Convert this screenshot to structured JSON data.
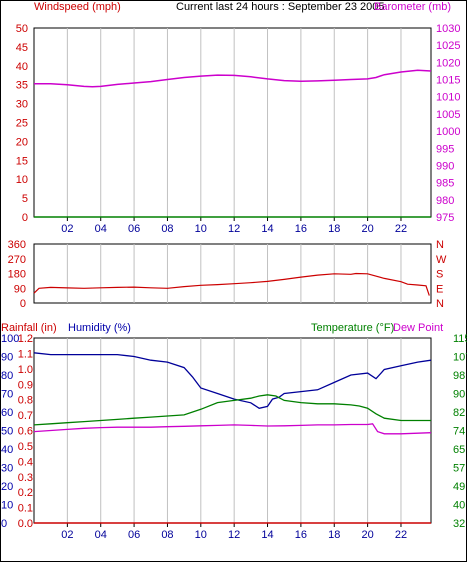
{
  "header": {
    "left_title": "Windspeed (mph)",
    "center_title": "Current last 24 hours : September 23 2005",
    "right_title": "Barometer (mb)"
  },
  "colors": {
    "wind": "#008000",
    "barometer": "#cc00cc",
    "direction": "#cc0000",
    "rain": "#cc0000",
    "humidity": "#000099",
    "temperature": "#008000",
    "dewpoint": "#cc00cc",
    "grid": "#c0c0c0",
    "axis_red": "#cc0000",
    "axis_magenta": "#cc00cc",
    "axis_blue": "#0000aa",
    "axis_green": "#008000"
  },
  "chart_data": [
    {
      "type": "line",
      "panel": "wind-barometer",
      "title": "Current last 24 hours : September 23 2005",
      "x_ticks": [
        "02",
        "04",
        "06",
        "08",
        "10",
        "12",
        "14",
        "16",
        "18",
        "20",
        "22"
      ],
      "x_hours": [
        2,
        4,
        6,
        8,
        10,
        12,
        14,
        16,
        18,
        20,
        22
      ],
      "xlim": [
        0,
        23.8
      ],
      "left_axis": {
        "label": "Windspeed (mph)",
        "ticks": [
          0,
          5,
          10,
          15,
          20,
          25,
          30,
          35,
          40,
          45,
          50
        ],
        "ylim": [
          0,
          50
        ]
      },
      "right_axis": {
        "label": "Barometer (mb)",
        "ticks": [
          975,
          980,
          985,
          990,
          995,
          1000,
          1005,
          1010,
          1015,
          1020,
          1025,
          1030
        ],
        "ylim": [
          975,
          1030
        ]
      },
      "series": [
        {
          "name": "Windspeed (mph)",
          "axis": "left",
          "x": [
            0,
            23.8
          ],
          "y": [
            0,
            0
          ]
        },
        {
          "name": "Barometer (mb)",
          "axis": "right",
          "x": [
            0,
            1,
            2,
            3,
            3.5,
            4,
            5,
            6,
            7,
            8,
            9,
            10,
            11,
            12,
            13,
            14,
            15,
            16,
            17,
            18,
            19,
            20,
            20.5,
            21,
            22,
            23,
            23.8
          ],
          "y": [
            1013.8,
            1013.8,
            1013.5,
            1013.0,
            1012.9,
            1013.0,
            1013.6,
            1014.0,
            1014.4,
            1015.0,
            1015.6,
            1016.0,
            1016.3,
            1016.2,
            1015.8,
            1015.2,
            1014.7,
            1014.5,
            1014.6,
            1014.8,
            1015.0,
            1015.2,
            1015.6,
            1016.4,
            1017.2,
            1017.7,
            1017.5
          ]
        }
      ]
    },
    {
      "type": "line",
      "panel": "wind-direction",
      "left_axis": {
        "ticks": [
          0,
          90,
          180,
          270,
          360
        ],
        "ylim": [
          0,
          360
        ]
      },
      "right_labels": [
        "N",
        "W",
        "S",
        "E",
        "N"
      ],
      "series": [
        {
          "name": "Wind direction",
          "x": [
            0,
            0.3,
            1,
            2,
            3,
            4,
            5,
            6,
            7,
            8,
            9,
            10,
            11,
            12,
            13,
            14,
            15,
            16,
            17,
            18,
            19,
            19.3,
            20,
            21,
            22,
            22.4,
            23,
            23.5,
            23.7
          ],
          "y": [
            60,
            90,
            95,
            92,
            90,
            93,
            95,
            97,
            93,
            90,
            100,
            108,
            112,
            118,
            124,
            132,
            144,
            158,
            170,
            178,
            175,
            180,
            178,
            150,
            130,
            115,
            110,
            105,
            45
          ]
        }
      ]
    },
    {
      "type": "line",
      "panel": "rain-humidity-temperature",
      "labels": {
        "rain": "Rainfall (in)",
        "humidity": "Humidity (%)",
        "temperature": "Temperature (°F)",
        "dewpoint": "Dew Point"
      },
      "rain_axis": {
        "ticks": [
          "0.0",
          "0.1",
          "0.2",
          "0.3",
          "0.4",
          "0.5",
          "0.6",
          "0.7",
          "0.8",
          "0.9",
          "1.0",
          "1.1",
          "1.2"
        ],
        "ylim": [
          0,
          1.2
        ]
      },
      "humidity_axis": {
        "ticks": [
          0,
          10,
          20,
          30,
          40,
          50,
          60,
          70,
          80,
          90,
          100
        ],
        "ylim": [
          0,
          100
        ]
      },
      "temp_axis": {
        "ticks": [
          32,
          40,
          49,
          57,
          65,
          74,
          82,
          90,
          98,
          107,
          115
        ],
        "ylim": [
          32,
          115
        ]
      },
      "series": [
        {
          "name": "Rainfall (in)",
          "axis": "rain",
          "x": [
            0,
            23.8
          ],
          "y": [
            0,
            0
          ]
        },
        {
          "name": "Humidity (%)",
          "axis": "humidity",
          "x": [
            0,
            1,
            2,
            3,
            4,
            5,
            6,
            7,
            8,
            9,
            9.5,
            10,
            11,
            12,
            13,
            13.5,
            14,
            14.3,
            14.7,
            15,
            16,
            17,
            18,
            19,
            20,
            20.5,
            21,
            22,
            23,
            23.8
          ],
          "y": [
            92,
            91,
            91,
            91,
            91,
            91,
            90,
            88,
            87,
            84,
            79,
            73,
            70,
            67,
            65,
            62,
            63,
            67,
            68,
            70,
            71,
            72,
            76,
            80,
            81,
            78,
            83,
            85,
            87,
            88
          ]
        },
        {
          "name": "Temperature (°F)",
          "axis": "temp",
          "x": [
            0,
            1,
            2,
            3,
            4,
            5,
            6,
            7,
            8,
            9,
            10,
            11,
            12,
            13,
            13.5,
            14,
            14.5,
            15,
            16,
            17,
            18,
            19,
            19.5,
            20,
            20.5,
            21,
            22,
            23,
            23.8
          ],
          "y": [
            76,
            76.5,
            77,
            77.5,
            78,
            78.5,
            79,
            79.5,
            80,
            80.5,
            83,
            86,
            87,
            88,
            89,
            89.5,
            89,
            87,
            86,
            85.5,
            85.5,
            85,
            84.5,
            83.5,
            81,
            79,
            78,
            78,
            78
          ]
        },
        {
          "name": "Dew Point",
          "axis": "temp",
          "x": [
            0,
            1,
            2,
            3,
            4,
            5,
            6,
            7,
            8,
            9,
            10,
            11,
            12,
            13,
            14,
            15,
            16,
            17,
            18,
            19,
            20,
            20.3,
            20.6,
            21,
            22,
            23,
            23.8
          ],
          "y": [
            73,
            73.5,
            74,
            74.5,
            74.8,
            75,
            75,
            75,
            75.2,
            75.4,
            75.6,
            75.8,
            76,
            75.8,
            75.5,
            75.6,
            75.8,
            76,
            76,
            76.2,
            76.2,
            76.5,
            73,
            72,
            72,
            72.3,
            72.5
          ]
        }
      ]
    }
  ]
}
